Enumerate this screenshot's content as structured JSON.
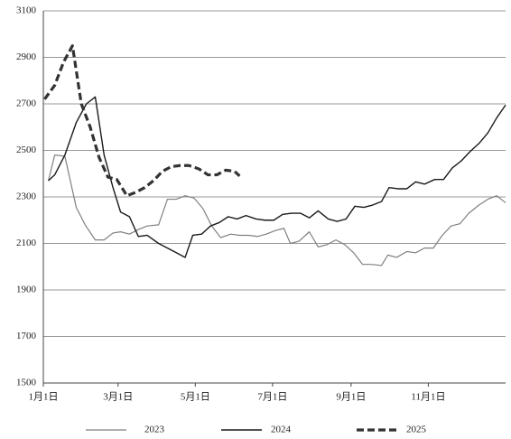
{
  "chart_data": {
    "type": "line",
    "xlim": [
      0,
      365
    ],
    "ylim": [
      1500,
      3100
    ],
    "yticks": [
      1500,
      1700,
      1900,
      2100,
      2300,
      2500,
      2700,
      2900,
      3100
    ],
    "xticks": [
      {
        "value": 0,
        "label": "1月1日"
      },
      {
        "value": 59,
        "label": "3月1日"
      },
      {
        "value": 120,
        "label": "5月1日"
      },
      {
        "value": 181,
        "label": "7月1日"
      },
      {
        "value": 243,
        "label": "9月1日"
      },
      {
        "value": 304,
        "label": "11月1日"
      }
    ],
    "grid": true,
    "series": [
      {
        "name": "2023",
        "color": "#808080",
        "width": 1.2,
        "dashed": false,
        "x": [
          4,
          9,
          17,
          26,
          33,
          41,
          48,
          55,
          61,
          68,
          75,
          82,
          91,
          98,
          105,
          112,
          119,
          126,
          133,
          140,
          148,
          155,
          162,
          169,
          176,
          183,
          190,
          195,
          202,
          210,
          217,
          224,
          231,
          238,
          245,
          252,
          259,
          267,
          272,
          279,
          287,
          294,
          301,
          308,
          315,
          322,
          329,
          336,
          344,
          351,
          358,
          365
        ],
        "values": [
          2370,
          2480,
          2475,
          2255,
          2180,
          2115,
          2115,
          2145,
          2150,
          2140,
          2160,
          2175,
          2180,
          2290,
          2290,
          2305,
          2295,
          2250,
          2175,
          2125,
          2140,
          2135,
          2135,
          2130,
          2140,
          2155,
          2165,
          2100,
          2110,
          2150,
          2085,
          2095,
          2115,
          2095,
          2060,
          2010,
          2010,
          2005,
          2050,
          2040,
          2065,
          2060,
          2080,
          2080,
          2135,
          2175,
          2185,
          2230,
          2265,
          2290,
          2305,
          2275
        ]
      },
      {
        "name": "2024",
        "color": "#1a1a1a",
        "width": 1.4,
        "dashed": false,
        "x": [
          4,
          9,
          17,
          26,
          34,
          41,
          48,
          55,
          61,
          68,
          75,
          82,
          91,
          98,
          105,
          112,
          118,
          125,
          132,
          139,
          146,
          153,
          160,
          168,
          175,
          182,
          189,
          196,
          203,
          210,
          217,
          225,
          232,
          239,
          246,
          253,
          260,
          267,
          273,
          280,
          287,
          294,
          301,
          309,
          316,
          323,
          330,
          337,
          344,
          351,
          358,
          365
        ],
        "values": [
          2370,
          2395,
          2480,
          2620,
          2700,
          2730,
          2480,
          2340,
          2235,
          2215,
          2130,
          2135,
          2100,
          2080,
          2060,
          2040,
          2135,
          2140,
          2175,
          2190,
          2215,
          2205,
          2220,
          2205,
          2200,
          2200,
          2225,
          2230,
          2230,
          2210,
          2240,
          2205,
          2195,
          2205,
          2260,
          2255,
          2265,
          2280,
          2340,
          2335,
          2335,
          2365,
          2355,
          2375,
          2375,
          2425,
          2455,
          2495,
          2530,
          2575,
          2640,
          2695
        ]
      },
      {
        "name": "2025",
        "color": "#333333",
        "width": 3.2,
        "dashed": true,
        "x": [
          1,
          9,
          16,
          23,
          30,
          37,
          44,
          51,
          58,
          66,
          73,
          80,
          87,
          94,
          101,
          108,
          115,
          123,
          130,
          137,
          144,
          151,
          155
        ],
        "values": [
          2720,
          2780,
          2880,
          2950,
          2700,
          2600,
          2470,
          2385,
          2375,
          2305,
          2320,
          2340,
          2370,
          2410,
          2430,
          2435,
          2435,
          2420,
          2395,
          2395,
          2415,
          2410,
          2390
        ]
      }
    ]
  }
}
